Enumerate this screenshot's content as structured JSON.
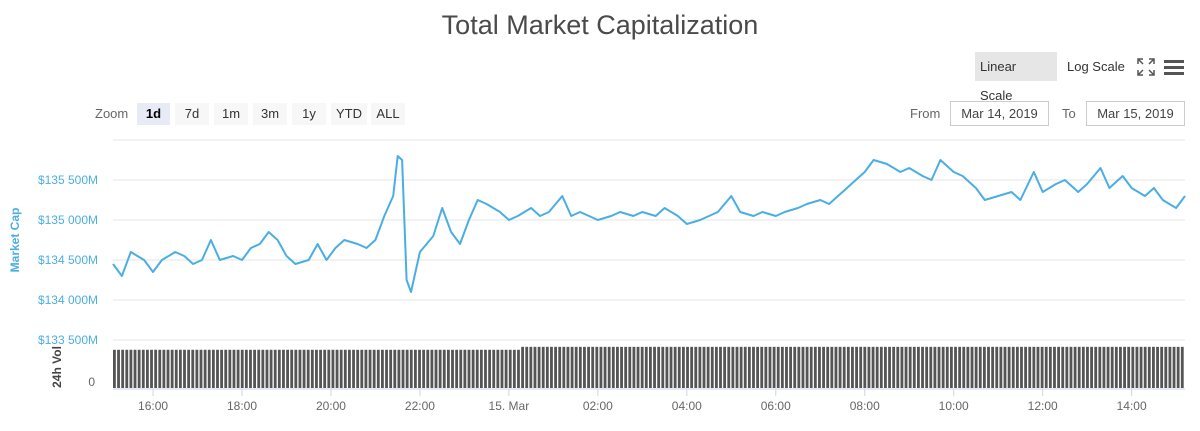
{
  "chart_data": {
    "type": "line",
    "title": "Total Market Capitalization",
    "ylabel": "Market Cap",
    "ylabel2": "24h Vol",
    "y_ticks": [
      133500,
      134000,
      134500,
      135000,
      135500
    ],
    "y_tick_labels": [
      "$133 500M",
      "$134 000M",
      "$134 500M",
      "$135 000M",
      "$135 500M"
    ],
    "vol_tick_label": "0",
    "ylim": [
      133500,
      136000
    ],
    "x_tick_labels": [
      "16:00",
      "18:00",
      "20:00",
      "22:00",
      "15. Mar",
      "02:00",
      "04:00",
      "06:00",
      "08:00",
      "10:00",
      "12:00",
      "14:00"
    ],
    "x_ticks_hours": [
      16,
      18,
      20,
      22,
      24,
      26,
      28,
      30,
      32,
      34,
      36,
      38
    ],
    "x_range_hours": [
      15.1,
      39.2
    ],
    "series": [
      {
        "type": "line",
        "color": "#4aaee3",
        "points": [
          [
            15.1,
            134450
          ],
          [
            15.3,
            134300
          ],
          [
            15.5,
            134600
          ],
          [
            15.8,
            134500
          ],
          [
            16.0,
            134350
          ],
          [
            16.2,
            134500
          ],
          [
            16.5,
            134600
          ],
          [
            16.7,
            134550
          ],
          [
            16.9,
            134450
          ],
          [
            17.1,
            134500
          ],
          [
            17.3,
            134750
          ],
          [
            17.5,
            134500
          ],
          [
            17.8,
            134550
          ],
          [
            18.0,
            134500
          ],
          [
            18.2,
            134650
          ],
          [
            18.4,
            134700
          ],
          [
            18.6,
            134850
          ],
          [
            18.8,
            134750
          ],
          [
            19.0,
            134550
          ],
          [
            19.2,
            134450
          ],
          [
            19.5,
            134500
          ],
          [
            19.7,
            134700
          ],
          [
            19.9,
            134500
          ],
          [
            20.1,
            134650
          ],
          [
            20.3,
            134750
          ],
          [
            20.6,
            134700
          ],
          [
            20.8,
            134650
          ],
          [
            21.0,
            134750
          ],
          [
            21.2,
            135050
          ],
          [
            21.4,
            135300
          ],
          [
            21.5,
            135800
          ],
          [
            21.6,
            135750
          ],
          [
            21.7,
            134250
          ],
          [
            21.8,
            134100
          ],
          [
            22.0,
            134600
          ],
          [
            22.3,
            134800
          ],
          [
            22.5,
            135150
          ],
          [
            22.7,
            134850
          ],
          [
            22.9,
            134700
          ],
          [
            23.1,
            135000
          ],
          [
            23.3,
            135250
          ],
          [
            23.5,
            135200
          ],
          [
            23.8,
            135100
          ],
          [
            24.0,
            135000
          ],
          [
            24.2,
            135050
          ],
          [
            24.5,
            135150
          ],
          [
            24.7,
            135050
          ],
          [
            24.9,
            135100
          ],
          [
            25.2,
            135300
          ],
          [
            25.4,
            135050
          ],
          [
            25.6,
            135100
          ],
          [
            25.8,
            135050
          ],
          [
            26.0,
            135000
          ],
          [
            26.3,
            135050
          ],
          [
            26.5,
            135100
          ],
          [
            26.8,
            135050
          ],
          [
            27.0,
            135100
          ],
          [
            27.3,
            135050
          ],
          [
            27.5,
            135150
          ],
          [
            27.8,
            135050
          ],
          [
            28.0,
            134950
          ],
          [
            28.3,
            135000
          ],
          [
            28.5,
            135050
          ],
          [
            28.7,
            135100
          ],
          [
            29.0,
            135300
          ],
          [
            29.2,
            135100
          ],
          [
            29.5,
            135050
          ],
          [
            29.7,
            135100
          ],
          [
            30.0,
            135050
          ],
          [
            30.2,
            135100
          ],
          [
            30.5,
            135150
          ],
          [
            30.7,
            135200
          ],
          [
            31.0,
            135250
          ],
          [
            31.2,
            135200
          ],
          [
            31.5,
            135350
          ],
          [
            31.8,
            135500
          ],
          [
            32.0,
            135600
          ],
          [
            32.2,
            135750
          ],
          [
            32.5,
            135700
          ],
          [
            32.8,
            135600
          ],
          [
            33.0,
            135650
          ],
          [
            33.3,
            135550
          ],
          [
            33.5,
            135500
          ],
          [
            33.7,
            135750
          ],
          [
            34.0,
            135600
          ],
          [
            34.2,
            135550
          ],
          [
            34.5,
            135400
          ],
          [
            34.7,
            135250
          ],
          [
            35.0,
            135300
          ],
          [
            35.3,
            135350
          ],
          [
            35.5,
            135250
          ],
          [
            35.8,
            135600
          ],
          [
            36.0,
            135350
          ],
          [
            36.3,
            135450
          ],
          [
            36.5,
            135500
          ],
          [
            36.8,
            135350
          ],
          [
            37.0,
            135450
          ],
          [
            37.3,
            135650
          ],
          [
            37.5,
            135400
          ],
          [
            37.8,
            135550
          ],
          [
            38.0,
            135400
          ],
          [
            38.3,
            135300
          ],
          [
            38.5,
            135400
          ],
          [
            38.7,
            135250
          ],
          [
            39.0,
            135150
          ],
          [
            39.2,
            135300
          ]
        ]
      }
    ],
    "volume": {
      "color": "#555555",
      "start_hour": 15.1,
      "end_hour": 39.2,
      "bars": 260,
      "level_first_half": 0.91,
      "level_second_half": 0.98
    }
  },
  "controls": {
    "scale_buttons": [
      {
        "label": "Linear Scale",
        "active": true
      },
      {
        "label": "Log Scale",
        "active": false
      }
    ],
    "zoom_label": "Zoom",
    "zoom_buttons": [
      {
        "label": "1d",
        "active": true
      },
      {
        "label": "7d",
        "active": false
      },
      {
        "label": "1m",
        "active": false
      },
      {
        "label": "3m",
        "active": false
      },
      {
        "label": "1y",
        "active": false
      },
      {
        "label": "YTD",
        "active": false
      },
      {
        "label": "ALL",
        "active": false
      }
    ],
    "from_label": "From",
    "from_value": "Mar 14, 2019",
    "to_label": "To",
    "to_value": "Mar 15, 2019",
    "icons": [
      "fullscreen-icon",
      "menu-icon"
    ]
  },
  "colors": {
    "line": "#4aaee3",
    "axis_label": "#4aaee3",
    "grid": "#e6e6e6",
    "volume": "#555555"
  }
}
